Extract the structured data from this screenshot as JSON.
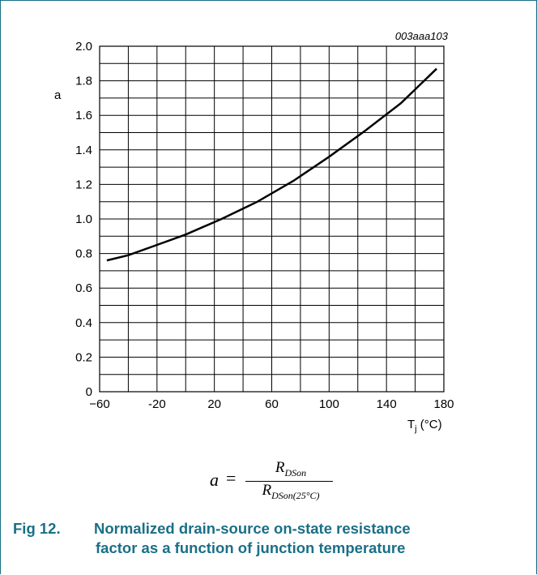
{
  "figure_code": "003aaa103",
  "formula": {
    "lhs": "a",
    "equals": "=",
    "numerator_main": "R",
    "numerator_sub": "DSon",
    "denominator_main": "R",
    "denominator_sub": "DSon(25°C)"
  },
  "caption": {
    "number": "Fig 12.",
    "line1": "Normalized drain-source on-state resistance",
    "line2": "factor as a function of junction temperature"
  },
  "chart_data": {
    "type": "line",
    "title": "",
    "xlabel": "T",
    "xlabel_sub": "j",
    "xlabel_unit": " (°C)",
    "ylabel": "a",
    "xlim": [
      -60,
      180
    ],
    "ylim": [
      0,
      2.0
    ],
    "x_ticks": [
      -60,
      -20,
      20,
      60,
      100,
      140,
      180
    ],
    "x_tick_labels": [
      "−60",
      "-20",
      "20",
      "60",
      "100",
      "140",
      "180"
    ],
    "y_ticks": [
      0,
      0.2,
      0.4,
      0.6,
      0.8,
      1.0,
      1.2,
      1.4,
      1.6,
      1.8,
      2.0
    ],
    "y_tick_labels": [
      "0",
      "0.2",
      "0.4",
      "0.6",
      "0.8",
      "1.0",
      "1.2",
      "1.4",
      "1.6",
      "1.8",
      "2.0"
    ],
    "grid": true,
    "series": [
      {
        "x": [
          -55,
          -40,
          -20,
          0,
          25,
          50,
          75,
          100,
          125,
          150,
          175
        ],
        "values": [
          0.76,
          0.79,
          0.85,
          0.91,
          1.0,
          1.1,
          1.22,
          1.36,
          1.51,
          1.67,
          1.87
        ]
      }
    ]
  }
}
